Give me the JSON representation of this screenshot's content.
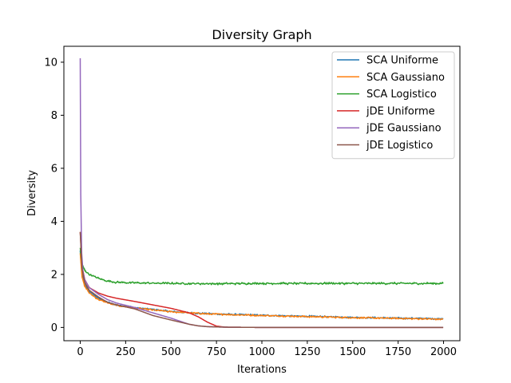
{
  "chart_data": {
    "type": "line",
    "title": "Diversity Graph",
    "xlabel": "Iterations",
    "ylabel": "Diversity",
    "xlim": [
      -90,
      2090
    ],
    "ylim": [
      -0.5,
      10.6
    ],
    "xticks": [
      0,
      250,
      500,
      750,
      1000,
      1250,
      1500,
      1750,
      2000
    ],
    "yticks": [
      0,
      2,
      4,
      6,
      8,
      10
    ],
    "grid": false,
    "legend_position": "top-right",
    "series": [
      {
        "name": "SCA Uniforme",
        "color": "#1f77b4",
        "noise": 0.012,
        "points": [
          [
            0,
            2.9
          ],
          [
            10,
            2.0
          ],
          [
            25,
            1.6
          ],
          [
            50,
            1.35
          ],
          [
            100,
            1.1
          ],
          [
            150,
            0.95
          ],
          [
            200,
            0.85
          ],
          [
            300,
            0.75
          ],
          [
            400,
            0.68
          ],
          [
            500,
            0.6
          ],
          [
            600,
            0.55
          ],
          [
            700,
            0.52
          ],
          [
            800,
            0.5
          ],
          [
            1000,
            0.46
          ],
          [
            1250,
            0.42
          ],
          [
            1500,
            0.38
          ],
          [
            1750,
            0.35
          ],
          [
            2000,
            0.33
          ]
        ]
      },
      {
        "name": "SCA Gaussiano",
        "color": "#ff7f0e",
        "noise": 0.012,
        "points": [
          [
            0,
            2.8
          ],
          [
            10,
            1.9
          ],
          [
            25,
            1.55
          ],
          [
            50,
            1.3
          ],
          [
            100,
            1.05
          ],
          [
            150,
            0.93
          ],
          [
            200,
            0.83
          ],
          [
            300,
            0.73
          ],
          [
            400,
            0.66
          ],
          [
            500,
            0.59
          ],
          [
            600,
            0.55
          ],
          [
            700,
            0.51
          ],
          [
            800,
            0.49
          ],
          [
            1000,
            0.45
          ],
          [
            1250,
            0.41
          ],
          [
            1500,
            0.37
          ],
          [
            1750,
            0.34
          ],
          [
            2000,
            0.31
          ]
        ]
      },
      {
        "name": "SCA Logistico",
        "color": "#2ca02c",
        "noise": 0.015,
        "points": [
          [
            0,
            3.0
          ],
          [
            10,
            2.4
          ],
          [
            25,
            2.15
          ],
          [
            50,
            2.0
          ],
          [
            100,
            1.85
          ],
          [
            150,
            1.75
          ],
          [
            200,
            1.7
          ],
          [
            300,
            1.68
          ],
          [
            500,
            1.66
          ],
          [
            750,
            1.65
          ],
          [
            1000,
            1.66
          ],
          [
            1250,
            1.66
          ],
          [
            1500,
            1.66
          ],
          [
            1750,
            1.66
          ],
          [
            2000,
            1.66
          ]
        ]
      },
      {
        "name": "jDE Uniforme",
        "color": "#d62728",
        "noise": 0,
        "points": [
          [
            0,
            3.6
          ],
          [
            10,
            2.3
          ],
          [
            25,
            1.8
          ],
          [
            50,
            1.5
          ],
          [
            100,
            1.3
          ],
          [
            150,
            1.18
          ],
          [
            200,
            1.1
          ],
          [
            300,
            0.98
          ],
          [
            400,
            0.85
          ],
          [
            500,
            0.72
          ],
          [
            600,
            0.55
          ],
          [
            650,
            0.4
          ],
          [
            700,
            0.2
          ],
          [
            750,
            0.05
          ],
          [
            800,
            0.01
          ],
          [
            1000,
            0.0
          ],
          [
            2000,
            0.0
          ]
        ]
      },
      {
        "name": "jDE Gaussiano",
        "color": "#9467bd",
        "noise": 0,
        "points": [
          [
            0,
            10.15
          ],
          [
            3,
            5.0
          ],
          [
            8,
            2.8
          ],
          [
            15,
            2.1
          ],
          [
            25,
            1.8
          ],
          [
            50,
            1.5
          ],
          [
            100,
            1.25
          ],
          [
            150,
            1.05
          ],
          [
            200,
            0.92
          ],
          [
            300,
            0.75
          ],
          [
            400,
            0.55
          ],
          [
            500,
            0.35
          ],
          [
            600,
            0.12
          ],
          [
            650,
            0.06
          ],
          [
            700,
            0.03
          ],
          [
            800,
            0.01
          ],
          [
            1000,
            0.0
          ],
          [
            2000,
            0.0
          ]
        ]
      },
      {
        "name": "jDE Logistico",
        "color": "#8c564b",
        "noise": 0,
        "points": [
          [
            0,
            3.6
          ],
          [
            10,
            2.2
          ],
          [
            25,
            1.7
          ],
          [
            50,
            1.4
          ],
          [
            100,
            1.15
          ],
          [
            150,
            0.95
          ],
          [
            200,
            0.85
          ],
          [
            300,
            0.7
          ],
          [
            400,
            0.45
          ],
          [
            500,
            0.28
          ],
          [
            600,
            0.12
          ],
          [
            650,
            0.06
          ],
          [
            700,
            0.03
          ],
          [
            800,
            0.01
          ],
          [
            1000,
            0.0
          ],
          [
            2000,
            0.0
          ]
        ]
      }
    ]
  }
}
